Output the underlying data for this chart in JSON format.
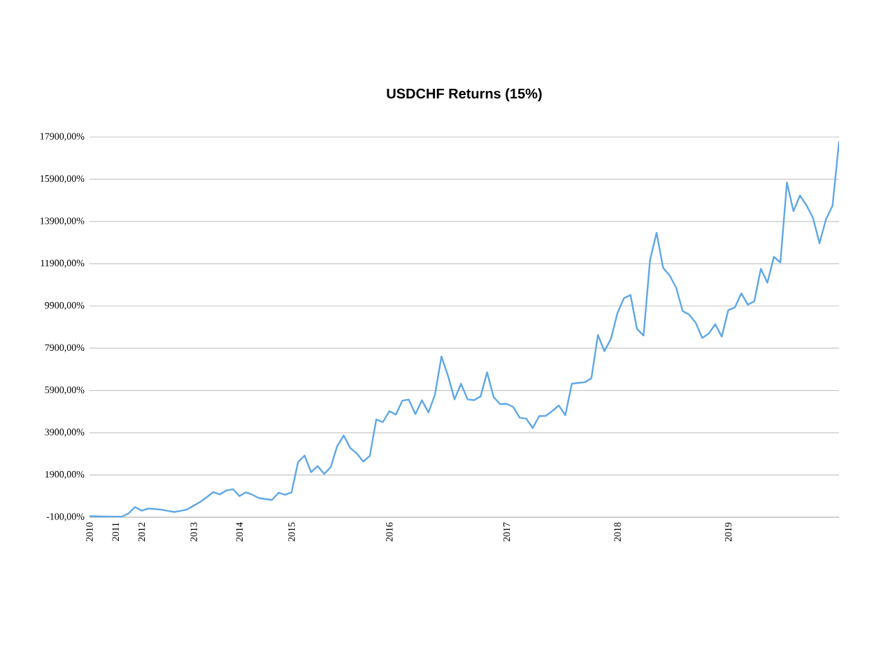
{
  "chart_data": {
    "type": "line",
    "title": "USDCHF Returns (15%)",
    "categories": [
      "2010",
      null,
      null,
      null,
      "2011",
      null,
      null,
      null,
      "2012",
      null,
      null,
      null,
      null,
      null,
      null,
      null,
      "2013",
      null,
      null,
      null,
      null,
      null,
      null,
      "2014",
      null,
      null,
      null,
      null,
      null,
      null,
      null,
      "2015",
      null,
      null,
      null,
      null,
      null,
      null,
      null,
      null,
      null,
      null,
      null,
      null,
      null,
      null,
      "2016",
      null,
      null,
      null,
      null,
      null,
      null,
      null,
      null,
      null,
      null,
      null,
      null,
      null,
      null,
      null,
      null,
      null,
      "2017",
      null,
      null,
      null,
      null,
      null,
      null,
      null,
      null,
      null,
      null,
      null,
      null,
      null,
      null,
      null,
      null,
      "2018",
      null,
      null,
      null,
      null,
      null,
      null,
      null,
      null,
      null,
      null,
      null,
      null,
      null,
      null,
      null,
      null,
      "2019",
      null,
      null,
      null,
      null,
      null,
      null,
      null,
      null,
      null,
      null,
      null,
      null,
      null,
      null,
      null,
      null,
      null
    ],
    "series": [
      {
        "color": "#5ea7e8",
        "values": [
          -50,
          -60,
          -65,
          -70,
          -75,
          -70,
          90,
          380,
          210,
          310,
          290,
          260,
          200,
          150,
          200,
          270,
          450,
          630,
          850,
          1090,
          980,
          1170,
          1230,
          900,
          1080,
          960,
          810,
          760,
          720,
          1060,
          960,
          1080,
          2510,
          2820,
          2030,
          2320,
          1950,
          2270,
          3260,
          3770,
          3180,
          2920,
          2540,
          2800,
          4530,
          4400,
          4920,
          4760,
          5420,
          5470,
          4780,
          5440,
          4860,
          5700,
          7510,
          6600,
          5480,
          6220,
          5480,
          5440,
          5620,
          6760,
          5590,
          5250,
          5270,
          5120,
          4610,
          4570,
          4120,
          4690,
          4700,
          4930,
          5190,
          4730,
          6220,
          6260,
          6290,
          6480,
          8530,
          7760,
          8350,
          9560,
          10270,
          10420,
          8810,
          8500,
          12080,
          13370,
          11710,
          11350,
          10770,
          9660,
          9490,
          9110,
          8390,
          8590,
          9040,
          8450,
          9700,
          9830,
          10500,
          9960,
          10130,
          11660,
          11000,
          12230,
          11960,
          15750,
          14390,
          15130,
          14670,
          14070,
          12870,
          14010,
          14650,
          17700
        ]
      }
    ],
    "ylim": [
      -100,
      17900
    ],
    "yticks": [
      {
        "value": -100,
        "label": "-100,00%"
      },
      {
        "value": 1900,
        "label": "1900,00%"
      },
      {
        "value": 3900,
        "label": "3900,00%"
      },
      {
        "value": 5900,
        "label": "5900,00%"
      },
      {
        "value": 7900,
        "label": "7900,00%"
      },
      {
        "value": 9900,
        "label": "9900,00%"
      },
      {
        "value": 11900,
        "label": "11900,00%"
      },
      {
        "value": 13900,
        "label": "13900,00%"
      },
      {
        "value": 15900,
        "label": "15900,00%"
      },
      {
        "value": 17900,
        "label": "17900,00%"
      }
    ],
    "grid": "y",
    "marker": "none",
    "line_style": "solid"
  }
}
